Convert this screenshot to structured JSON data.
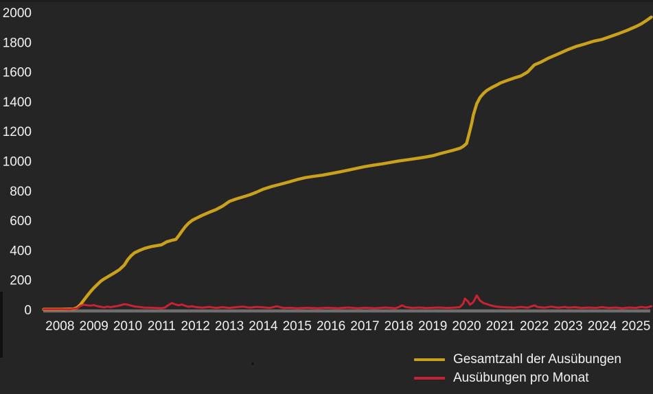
{
  "chart_data": {
    "type": "line",
    "title": "",
    "xlabel": "",
    "ylabel": "",
    "x_range": [
      2007.52,
      2025.5
    ],
    "ylim": [
      0,
      2000
    ],
    "xticks": [
      2008,
      2009,
      2010,
      2011,
      2012,
      2013,
      2014,
      2015,
      2016,
      2017,
      2018,
      2019,
      2020,
      2021,
      2022,
      2023,
      2024,
      2025
    ],
    "yticks": [
      0,
      200,
      400,
      600,
      800,
      1000,
      1200,
      1400,
      1600,
      1800,
      2000
    ],
    "grid": false,
    "legend_position": "bottom-right",
    "colors": {
      "background": "#252525",
      "text": "#f2f2f2",
      "axis": "#6e6e6e"
    },
    "series": [
      {
        "name": "Gesamtzahl der Ausübungen",
        "color": "#c9a11d",
        "width": 4.5,
        "points": [
          [
            2007.52,
            2
          ],
          [
            2008.0,
            2
          ],
          [
            2008.4,
            4
          ],
          [
            2008.5,
            12
          ],
          [
            2008.6,
            32
          ],
          [
            2008.7,
            62
          ],
          [
            2008.8,
            92
          ],
          [
            2008.9,
            120
          ],
          [
            2009.0,
            146
          ],
          [
            2009.1,
            168
          ],
          [
            2009.2,
            190
          ],
          [
            2009.3,
            206
          ],
          [
            2009.45,
            226
          ],
          [
            2009.6,
            246
          ],
          [
            2009.75,
            268
          ],
          [
            2009.9,
            300
          ],
          [
            2010.0,
            336
          ],
          [
            2010.1,
            362
          ],
          [
            2010.2,
            382
          ],
          [
            2010.35,
            398
          ],
          [
            2010.5,
            412
          ],
          [
            2010.7,
            424
          ],
          [
            2010.9,
            432
          ],
          [
            2011.0,
            436
          ],
          [
            2011.15,
            456
          ],
          [
            2011.3,
            466
          ],
          [
            2011.42,
            472
          ],
          [
            2011.5,
            495
          ],
          [
            2011.6,
            528
          ],
          [
            2011.7,
            558
          ],
          [
            2011.8,
            582
          ],
          [
            2011.9,
            600
          ],
          [
            2012.0,
            612
          ],
          [
            2012.2,
            634
          ],
          [
            2012.4,
            654
          ],
          [
            2012.6,
            672
          ],
          [
            2012.8,
            696
          ],
          [
            2013.0,
            728
          ],
          [
            2013.2,
            744
          ],
          [
            2013.4,
            758
          ],
          [
            2013.6,
            772
          ],
          [
            2013.8,
            790
          ],
          [
            2014.0,
            810
          ],
          [
            2014.25,
            828
          ],
          [
            2014.5,
            843
          ],
          [
            2014.75,
            858
          ],
          [
            2015.0,
            875
          ],
          [
            2015.25,
            888
          ],
          [
            2015.5,
            897
          ],
          [
            2015.75,
            905
          ],
          [
            2016.0,
            915
          ],
          [
            2016.25,
            926
          ],
          [
            2016.5,
            938
          ],
          [
            2016.75,
            950
          ],
          [
            2017.0,
            962
          ],
          [
            2017.25,
            972
          ],
          [
            2017.5,
            980
          ],
          [
            2017.75,
            990
          ],
          [
            2018.0,
            1000
          ],
          [
            2018.25,
            1008
          ],
          [
            2018.5,
            1016
          ],
          [
            2018.75,
            1025
          ],
          [
            2019.0,
            1035
          ],
          [
            2019.2,
            1048
          ],
          [
            2019.4,
            1060
          ],
          [
            2019.6,
            1072
          ],
          [
            2019.8,
            1085
          ],
          [
            2019.9,
            1098
          ],
          [
            2020.0,
            1118
          ],
          [
            2020.05,
            1162
          ],
          [
            2020.1,
            1205
          ],
          [
            2020.15,
            1252
          ],
          [
            2020.2,
            1310
          ],
          [
            2020.3,
            1385
          ],
          [
            2020.4,
            1428
          ],
          [
            2020.5,
            1455
          ],
          [
            2020.6,
            1475
          ],
          [
            2020.75,
            1495
          ],
          [
            2020.9,
            1512
          ],
          [
            2021.0,
            1525
          ],
          [
            2021.2,
            1542
          ],
          [
            2021.4,
            1558
          ],
          [
            2021.6,
            1572
          ],
          [
            2021.8,
            1598
          ],
          [
            2022.0,
            1646
          ],
          [
            2022.2,
            1666
          ],
          [
            2022.4,
            1690
          ],
          [
            2022.6,
            1710
          ],
          [
            2022.8,
            1730
          ],
          [
            2023.0,
            1750
          ],
          [
            2023.25,
            1772
          ],
          [
            2023.5,
            1788
          ],
          [
            2023.75,
            1806
          ],
          [
            2024.0,
            1818
          ],
          [
            2024.25,
            1838
          ],
          [
            2024.5,
            1858
          ],
          [
            2024.75,
            1880
          ],
          [
            2025.0,
            1905
          ],
          [
            2025.15,
            1922
          ],
          [
            2025.3,
            1944
          ],
          [
            2025.45,
            1968
          ]
        ]
      },
      {
        "name": "Ausübungen pro Monat",
        "color": "#cb2233",
        "width": 3,
        "points": [
          [
            2007.52,
            2
          ],
          [
            2008.0,
            2
          ],
          [
            2008.3,
            2
          ],
          [
            2008.5,
            8
          ],
          [
            2008.6,
            24
          ],
          [
            2008.7,
            33
          ],
          [
            2008.8,
            29
          ],
          [
            2008.9,
            27
          ],
          [
            2009.0,
            30
          ],
          [
            2009.1,
            23
          ],
          [
            2009.2,
            19
          ],
          [
            2009.3,
            15
          ],
          [
            2009.4,
            20
          ],
          [
            2009.5,
            16
          ],
          [
            2009.6,
            21
          ],
          [
            2009.7,
            24
          ],
          [
            2009.8,
            30
          ],
          [
            2009.9,
            36
          ],
          [
            2010.0,
            33
          ],
          [
            2010.1,
            27
          ],
          [
            2010.2,
            21
          ],
          [
            2010.35,
            17
          ],
          [
            2010.5,
            13
          ],
          [
            2010.65,
            13
          ],
          [
            2010.8,
            11
          ],
          [
            2010.9,
            10
          ],
          [
            2011.0,
            9
          ],
          [
            2011.1,
            14
          ],
          [
            2011.2,
            30
          ],
          [
            2011.3,
            44
          ],
          [
            2011.4,
            35
          ],
          [
            2011.5,
            29
          ],
          [
            2011.6,
            34
          ],
          [
            2011.7,
            25
          ],
          [
            2011.8,
            19
          ],
          [
            2011.9,
            22
          ],
          [
            2012.0,
            17
          ],
          [
            2012.2,
            13
          ],
          [
            2012.4,
            18
          ],
          [
            2012.6,
            11
          ],
          [
            2012.8,
            16
          ],
          [
            2013.0,
            11
          ],
          [
            2013.2,
            16
          ],
          [
            2013.4,
            20
          ],
          [
            2013.6,
            13
          ],
          [
            2013.8,
            18
          ],
          [
            2014.0,
            15
          ],
          [
            2014.2,
            11
          ],
          [
            2014.4,
            22
          ],
          [
            2014.6,
            10
          ],
          [
            2014.8,
            12
          ],
          [
            2015.0,
            9
          ],
          [
            2015.3,
            12
          ],
          [
            2015.6,
            9
          ],
          [
            2015.9,
            12
          ],
          [
            2016.2,
            9
          ],
          [
            2016.5,
            14
          ],
          [
            2016.8,
            9
          ],
          [
            2017.0,
            12
          ],
          [
            2017.3,
            9
          ],
          [
            2017.6,
            14
          ],
          [
            2017.9,
            9
          ],
          [
            2018.0,
            17
          ],
          [
            2018.1,
            28
          ],
          [
            2018.2,
            17
          ],
          [
            2018.4,
            11
          ],
          [
            2018.6,
            14
          ],
          [
            2018.8,
            10
          ],
          [
            2019.0,
            12
          ],
          [
            2019.2,
            14
          ],
          [
            2019.4,
            11
          ],
          [
            2019.6,
            13
          ],
          [
            2019.8,
            16
          ],
          [
            2019.9,
            40
          ],
          [
            2019.95,
            74
          ],
          [
            2020.05,
            52
          ],
          [
            2020.1,
            33
          ],
          [
            2020.2,
            50
          ],
          [
            2020.3,
            95
          ],
          [
            2020.4,
            60
          ],
          [
            2020.5,
            44
          ],
          [
            2020.6,
            37
          ],
          [
            2020.7,
            29
          ],
          [
            2020.8,
            23
          ],
          [
            2020.9,
            19
          ],
          [
            2021.0,
            17
          ],
          [
            2021.2,
            15
          ],
          [
            2021.4,
            13
          ],
          [
            2021.6,
            18
          ],
          [
            2021.8,
            13
          ],
          [
            2022.0,
            28
          ],
          [
            2022.1,
            17
          ],
          [
            2022.3,
            13
          ],
          [
            2022.5,
            20
          ],
          [
            2022.7,
            13
          ],
          [
            2022.9,
            18
          ],
          [
            2023.0,
            13
          ],
          [
            2023.2,
            16
          ],
          [
            2023.4,
            11
          ],
          [
            2023.6,
            14
          ],
          [
            2023.8,
            11
          ],
          [
            2024.0,
            16
          ],
          [
            2024.2,
            11
          ],
          [
            2024.4,
            14
          ],
          [
            2024.6,
            9
          ],
          [
            2024.8,
            14
          ],
          [
            2025.0,
            11
          ],
          [
            2025.15,
            18
          ],
          [
            2025.3,
            13
          ],
          [
            2025.45,
            22
          ]
        ]
      }
    ]
  },
  "legend": {
    "total_label": "Gesamtzahl der Ausübungen",
    "monthly_label": "Ausübungen pro Monat"
  }
}
